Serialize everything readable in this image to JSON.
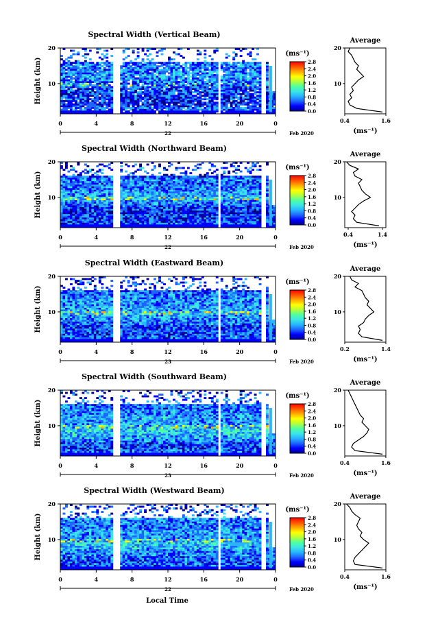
{
  "figure": {
    "xlabel": "Local Time",
    "date_label": "Feb 2020"
  },
  "colors": {
    "colormap": [
      "#00008b",
      "#0000ff",
      "#1e64ff",
      "#28b4ff",
      "#3ce6e6",
      "#50ffa0",
      "#b4ff3c",
      "#ffff00",
      "#ffaa00",
      "#ff5500",
      "#ff0000"
    ],
    "profile_line": "#000000",
    "gap": "#ffffff"
  },
  "chart_data": [
    {
      "type": "heatmap",
      "title": "Spectral Width (Vertical Beam)",
      "xlabel": "",
      "ylabel": "Height (km)",
      "x_ticks": [
        "0",
        "4",
        "8",
        "12",
        "16",
        "20",
        "0"
      ],
      "x_ticks_values": [
        0,
        4,
        8,
        12,
        16,
        20,
        24
      ],
      "date_marker": "22",
      "xlim": [
        0,
        24
      ],
      "y_ticks": [
        "20",
        "10"
      ],
      "y_ticks_values": [
        20,
        10
      ],
      "ylim": [
        1.5,
        20
      ],
      "colorbar": {
        "unit": "(ms⁻¹)",
        "ticks": [
          "2.8",
          "2.4",
          "2.0",
          "1.6",
          "1.2",
          "0.8",
          "0.4",
          "0.0"
        ],
        "range": [
          0,
          2.8
        ]
      },
      "data_gaps_hours": [
        [
          5.9,
          6.6
        ],
        [
          17.6,
          17.9
        ],
        [
          22.3,
          22.9
        ]
      ],
      "profile": {
        "title": "Average",
        "xlabel": "(ms⁻¹)",
        "x_ticks": [
          "0.4",
          "1.6"
        ],
        "x_ticks_values": [
          0.4,
          1.6
        ],
        "xlim": [
          0.4,
          1.6
        ],
        "y_ticks": [
          "20",
          "10"
        ],
        "y_ticks_values": [
          20,
          10
        ],
        "ylim": [
          1.5,
          20
        ],
        "height": [
          2,
          3,
          4,
          5,
          6,
          7,
          8,
          9,
          10,
          11,
          12,
          13,
          14,
          15,
          16,
          17,
          18,
          19,
          20
        ],
        "values": [
          1.5,
          0.75,
          0.55,
          0.5,
          0.6,
          0.55,
          0.65,
          0.6,
          0.7,
          0.8,
          0.95,
          0.85,
          0.75,
          0.8,
          0.7,
          0.65,
          0.6,
          0.5,
          0.55
        ]
      }
    },
    {
      "type": "heatmap",
      "title": "Spectral Width (Northward Beam)",
      "xlabel": "",
      "ylabel": "Height (km)",
      "x_ticks": [
        "0",
        "4",
        "8",
        "12",
        "16",
        "20",
        "0"
      ],
      "x_ticks_values": [
        0,
        4,
        8,
        12,
        16,
        20,
        24
      ],
      "date_marker": "22",
      "xlim": [
        0,
        24
      ],
      "y_ticks": [
        "20",
        "10"
      ],
      "y_ticks_values": [
        20,
        10
      ],
      "ylim": [
        1.5,
        20
      ],
      "colorbar": {
        "unit": "(ms⁻¹)",
        "ticks": [
          "2.8",
          "2.4",
          "2.0",
          "1.6",
          "1.2",
          "0.8",
          "0.4",
          "0.0"
        ],
        "range": [
          0,
          2.8
        ]
      },
      "data_gaps_hours": [
        [
          5.9,
          6.6
        ],
        [
          17.6,
          17.9
        ],
        [
          22.3,
          22.9
        ]
      ],
      "profile": {
        "title": "Average",
        "xlabel": "(ms⁻¹)",
        "x_ticks": [
          "0.4",
          "1.4"
        ],
        "x_ticks_values": [
          0.4,
          1.4
        ],
        "xlim": [
          0.3,
          1.5
        ],
        "y_ticks": [
          "20",
          "10"
        ],
        "y_ticks_values": [
          20,
          10
        ],
        "ylim": [
          1.5,
          20
        ],
        "height": [
          2,
          3,
          4,
          5,
          6,
          7,
          8,
          9,
          10,
          11,
          12,
          13,
          14,
          15,
          16,
          17,
          18,
          19,
          20
        ],
        "values": [
          1.3,
          0.65,
          0.55,
          0.6,
          0.5,
          0.6,
          0.7,
          0.85,
          1.05,
          0.9,
          0.8,
          0.75,
          0.7,
          0.8,
          0.6,
          0.55,
          0.7,
          0.45,
          0.35
        ]
      }
    },
    {
      "type": "heatmap",
      "title": "Spectral Width (Eastward Beam)",
      "xlabel": "",
      "ylabel": "Height (km)",
      "x_ticks": [
        "0",
        "4",
        "8",
        "12",
        "16",
        "20",
        "0"
      ],
      "x_ticks_values": [
        0,
        4,
        8,
        12,
        16,
        20,
        24
      ],
      "date_marker": "23",
      "xlim": [
        0,
        24
      ],
      "y_ticks": [
        "20",
        "10"
      ],
      "y_ticks_values": [
        20,
        10
      ],
      "ylim": [
        1.5,
        20
      ],
      "colorbar": {
        "unit": "(ms⁻¹)",
        "ticks": [
          "2.8",
          "2.4",
          "2.0",
          "1.6",
          "1.2",
          "0.8",
          "0.4",
          "0.0"
        ],
        "range": [
          0,
          2.8
        ]
      },
      "data_gaps_hours": [
        [
          5.9,
          6.6
        ],
        [
          17.6,
          17.9
        ],
        [
          22.3,
          22.9
        ]
      ],
      "profile": {
        "title": "Average",
        "xlabel": "(ms⁻¹)",
        "x_ticks": [
          "0.2",
          "1.4"
        ],
        "x_ticks_values": [
          0.2,
          1.4
        ],
        "xlim": [
          0.2,
          1.4
        ],
        "y_ticks": [
          "20",
          "10"
        ],
        "y_ticks_values": [
          20,
          10
        ],
        "ylim": [
          1.5,
          20
        ],
        "height": [
          2,
          3,
          4,
          5,
          6,
          7,
          8,
          9,
          10,
          11,
          12,
          13,
          14,
          15,
          16,
          17,
          18,
          19,
          20
        ],
        "values": [
          1.3,
          0.7,
          0.6,
          0.65,
          0.6,
          0.75,
          0.8,
          0.9,
          1.05,
          0.95,
          0.85,
          0.9,
          0.8,
          0.75,
          0.7,
          0.5,
          0.6,
          0.4,
          0.35
        ]
      }
    },
    {
      "type": "heatmap",
      "title": "Spectral Width (Southward Beam)",
      "xlabel": "",
      "ylabel": "Height (km)",
      "x_ticks": [
        "0",
        "4",
        "8",
        "12",
        "16",
        "20",
        "0"
      ],
      "x_ticks_values": [
        0,
        4,
        8,
        12,
        16,
        20,
        24
      ],
      "date_marker": "23",
      "xlim": [
        0,
        24
      ],
      "y_ticks": [
        "20",
        "10"
      ],
      "y_ticks_values": [
        20,
        10
      ],
      "ylim": [
        1.5,
        20
      ],
      "colorbar": {
        "unit": "(ms⁻¹)",
        "ticks": [
          "2.8",
          "2.4",
          "2.0",
          "1.6",
          "1.2",
          "0.8",
          "0.4",
          "0.0"
        ],
        "range": [
          0,
          2.8
        ]
      },
      "data_gaps_hours": [
        [
          5.9,
          6.6
        ],
        [
          17.6,
          17.9
        ],
        [
          22.3,
          22.9
        ]
      ],
      "profile": {
        "title": "Average",
        "xlabel": "(ms⁻¹)",
        "x_ticks": [
          "0.4",
          "1.6"
        ],
        "x_ticks_values": [
          0.4,
          1.6
        ],
        "xlim": [
          0.4,
          1.6
        ],
        "y_ticks": [
          "20",
          "10"
        ],
        "y_ticks_values": [
          20,
          10
        ],
        "ylim": [
          1.5,
          20
        ],
        "height": [
          2,
          3,
          4,
          5,
          6,
          7,
          8,
          9,
          10,
          11,
          12,
          13,
          14,
          15,
          16,
          17,
          18,
          19,
          20
        ],
        "values": [
          1.5,
          0.7,
          0.6,
          0.65,
          0.8,
          0.95,
          1.05,
          1.1,
          1.0,
          0.9,
          0.95,
          0.85,
          0.8,
          0.75,
          0.7,
          0.65,
          0.6,
          0.55,
          0.5
        ]
      }
    },
    {
      "type": "heatmap",
      "title": "Spectral Width (Westward Beam)",
      "xlabel": "Local Time",
      "ylabel": "Height (km)",
      "x_ticks": [
        "0",
        "4",
        "8",
        "12",
        "16",
        "20",
        "0"
      ],
      "x_ticks_values": [
        0,
        4,
        8,
        12,
        16,
        20,
        24
      ],
      "date_marker": "22",
      "xlim": [
        0,
        24
      ],
      "y_ticks": [
        "20",
        "10"
      ],
      "y_ticks_values": [
        20,
        10
      ],
      "ylim": [
        1.5,
        20
      ],
      "colorbar": {
        "unit": "(ms⁻¹)",
        "ticks": [
          "2.8",
          "2.4",
          "2.0",
          "1.6",
          "1.2",
          "0.8",
          "0.4",
          "0.0"
        ],
        "range": [
          0,
          2.8
        ]
      },
      "data_gaps_hours": [
        [
          5.9,
          6.6
        ],
        [
          17.6,
          17.9
        ],
        [
          22.3,
          22.9
        ]
      ],
      "profile": {
        "title": "Average",
        "xlabel": "(ms⁻¹)",
        "x_ticks": [
          "0.4",
          "1.6"
        ],
        "x_ticks_values": [
          0.4,
          1.6
        ],
        "xlim": [
          0.4,
          1.6
        ],
        "y_ticks": [
          "20",
          "10"
        ],
        "y_ticks_values": [
          20,
          10
        ],
        "ylim": [
          1.5,
          20
        ],
        "height": [
          2,
          3,
          4,
          5,
          6,
          7,
          8,
          9,
          10,
          11,
          12,
          13,
          14,
          15,
          16,
          17,
          18,
          19,
          20
        ],
        "values": [
          1.5,
          0.7,
          0.65,
          0.7,
          0.8,
          0.9,
          1.0,
          1.1,
          0.95,
          0.85,
          0.9,
          0.8,
          0.75,
          0.8,
          0.85,
          0.7,
          0.6,
          0.55,
          0.45
        ]
      }
    }
  ]
}
